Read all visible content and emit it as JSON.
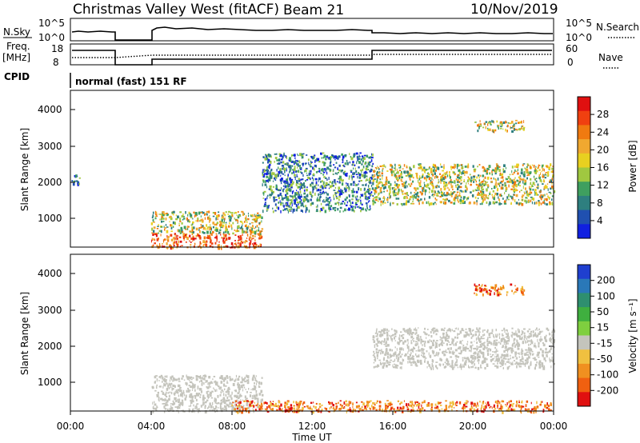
{
  "header": {
    "title": "Christmas Valley West (fitACF)",
    "beam": "Beam 21",
    "date": "10/Nov/2019"
  },
  "strips": {
    "nsky_label": "N.Sky",
    "nsearch_label": "N.Search",
    "freq_label_1": "Freq.",
    "freq_label_2": "[MHz]",
    "nave_label": "Nave",
    "cpid_label": "CPID",
    "cpid_value": "normal (fast) 151 RF",
    "noise_ticks": [
      "10^5",
      "10^0"
    ],
    "noise_right_ticks": [
      "10^5",
      "10^0"
    ],
    "freq_ticks": [
      "18",
      "8"
    ],
    "nave_ticks": [
      "60",
      "0"
    ]
  },
  "panels": {
    "power_ylabel": "Slant Range [km]",
    "velocity_ylabel": "Slant Range [km]",
    "y_ticks": [
      "4000",
      "3000",
      "2000",
      "1000"
    ],
    "xlabel": "Time UT",
    "x_ticks": [
      "00:00",
      "04:00",
      "08:00",
      "12:00",
      "16:00",
      "20:00",
      "00:00"
    ]
  },
  "colorbars": {
    "power": {
      "label": "Power [dB]",
      "ticks": [
        "28",
        "24",
        "20",
        "16",
        "12",
        "8",
        "4"
      ],
      "colors": [
        "#e01010",
        "#f04010",
        "#f07a10",
        "#f0a830",
        "#e8d020",
        "#a0c840",
        "#3f9f5f",
        "#2e7f7f",
        "#2050b0",
        "#1020e0"
      ]
    },
    "velocity": {
      "label": "Velocity [m s⁻¹]",
      "ticks": [
        "200",
        "100",
        "50",
        "15",
        "-15",
        "-50",
        "-100",
        "-200"
      ],
      "colors": [
        "#1f3fcf",
        "#2a78b8",
        "#2e8f6f",
        "#3faf3f",
        "#7fcf3f",
        "#c4c4bc",
        "#f0c040",
        "#f09020",
        "#f06010",
        "#e01010"
      ]
    }
  },
  "chart_data": [
    {
      "type": "heatmap",
      "title": "Christmas Valley West (fitACF) Beam 21 10/Nov/2019",
      "panel": "Power",
      "xlabel": "Time UT",
      "ylabel": "Slant Range [km]",
      "colorbar_label": "Power [dB]",
      "xlim": [
        "00:00",
        "24:00"
      ],
      "ylim": [
        200,
        4500
      ],
      "colorbar_range": [
        0,
        30
      ],
      "regions": [
        {
          "t_start": 0.0,
          "t_end": 0.5,
          "r_min": 1900,
          "r_max": 2200,
          "level": "low"
        },
        {
          "t_start": 4.0,
          "t_end": 9.5,
          "r_min": 200,
          "r_max": 600,
          "level": "high"
        },
        {
          "t_start": 4.0,
          "t_end": 9.5,
          "r_min": 600,
          "r_max": 1200,
          "level": "medium"
        },
        {
          "t_start": 9.5,
          "t_end": 15.0,
          "r_min": 1200,
          "r_max": 2800,
          "level": "low"
        },
        {
          "t_start": 15.0,
          "t_end": 24.0,
          "r_min": 1400,
          "r_max": 2500,
          "level": "medium"
        },
        {
          "t_start": 20.0,
          "t_end": 22.5,
          "r_min": 3400,
          "r_max": 3700,
          "level": "medium"
        }
      ]
    },
    {
      "type": "heatmap",
      "panel": "Velocity",
      "xlabel": "Time UT",
      "ylabel": "Slant Range [km]",
      "colorbar_label": "Velocity [m s⁻¹]",
      "xlim": [
        "00:00",
        "24:00"
      ],
      "ylim": [
        200,
        4500
      ],
      "colorbar_range": [
        -200,
        200
      ],
      "regions": [
        {
          "t_start": 4.0,
          "t_end": 9.5,
          "r_min": 200,
          "r_max": 1200,
          "level": "ground scatter"
        },
        {
          "t_start": 8.0,
          "t_end": 24.0,
          "r_min": 200,
          "r_max": 500,
          "level": "negative"
        },
        {
          "t_start": 15.0,
          "t_end": 24.0,
          "r_min": 1400,
          "r_max": 2500,
          "level": "ground scatter"
        },
        {
          "t_start": 20.0,
          "t_end": 22.5,
          "r_min": 3400,
          "r_max": 3700,
          "level": "negative"
        }
      ]
    }
  ]
}
